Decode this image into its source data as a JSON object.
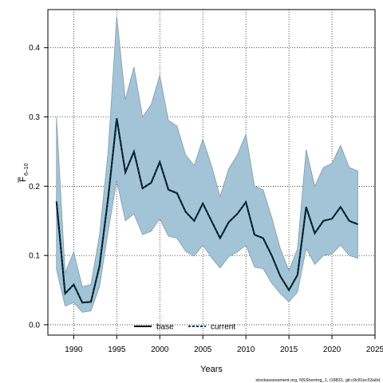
{
  "chart_data": {
    "type": "line",
    "xlabel": "Years",
    "ylabel_main": "F",
    "ylabel_sub": "6–10",
    "credit": "stockassessment.org, NSSherring_1, r18831, git:c9c81ec53a0d",
    "xlim": [
      1987,
      2025
    ],
    "ylim": [
      -0.015,
      0.455
    ],
    "xticks": [
      1990,
      1995,
      2000,
      2005,
      2010,
      2015,
      2020,
      2025
    ],
    "yticks": [
      0.0,
      0.1,
      0.2,
      0.3,
      0.4
    ],
    "ytick_labels": [
      "0.0",
      "0.1",
      "0.2",
      "0.3",
      "0.4"
    ],
    "grid": true,
    "legend_position": "bottom-center",
    "colors": {
      "band": "#a3c4d6",
      "band_edge": "#7f9aab",
      "base": "#000000",
      "current": "#003a4d"
    },
    "x": [
      1988,
      1989,
      1990,
      1991,
      1992,
      1993,
      1994,
      1995,
      1996,
      1997,
      1998,
      1999,
      2000,
      2001,
      2002,
      2003,
      2004,
      2005,
      2006,
      2007,
      2008,
      2009,
      2010,
      2011,
      2012,
      2013,
      2014,
      2015,
      2016,
      2017,
      2018,
      2019,
      2020,
      2021,
      2022,
      2023
    ],
    "band_upper": [
      0.3,
      0.075,
      0.105,
      0.055,
      0.058,
      0.13,
      0.25,
      0.445,
      0.325,
      0.372,
      0.3,
      0.318,
      0.36,
      0.295,
      0.287,
      0.245,
      0.23,
      0.268,
      0.23,
      0.185,
      0.225,
      0.245,
      0.275,
      0.2,
      0.195,
      0.155,
      0.11,
      0.078,
      0.11,
      0.253,
      0.2,
      0.227,
      0.233,
      0.259,
      0.227,
      0.222
    ],
    "band_lower": [
      0.08,
      0.027,
      0.032,
      0.018,
      0.02,
      0.055,
      0.135,
      0.208,
      0.15,
      0.16,
      0.13,
      0.135,
      0.153,
      0.128,
      0.125,
      0.106,
      0.099,
      0.115,
      0.097,
      0.082,
      0.098,
      0.105,
      0.115,
      0.083,
      0.081,
      0.06,
      0.045,
      0.033,
      0.047,
      0.11,
      0.087,
      0.1,
      0.102,
      0.115,
      0.1,
      0.096
    ],
    "series": [
      {
        "name": "base",
        "style": "solid",
        "values": [
          0.178,
          0.045,
          0.058,
          0.032,
          0.033,
          0.085,
          0.183,
          0.298,
          0.22,
          0.25,
          0.197,
          0.205,
          0.235,
          0.195,
          0.19,
          0.163,
          0.15,
          0.175,
          0.15,
          0.125,
          0.148,
          0.16,
          0.177,
          0.13,
          0.125,
          0.1,
          0.07,
          0.05,
          0.072,
          0.17,
          0.132,
          0.15,
          0.153,
          0.17,
          0.15,
          0.145
        ]
      },
      {
        "name": "current",
        "style": "dashed",
        "values": [
          0.178,
          0.045,
          0.058,
          0.032,
          0.033,
          0.085,
          0.183,
          0.298,
          0.22,
          0.25,
          0.197,
          0.205,
          0.235,
          0.195,
          0.19,
          0.163,
          0.15,
          0.175,
          0.15,
          0.125,
          0.148,
          0.16,
          0.177,
          0.13,
          0.125,
          0.1,
          0.07,
          0.05,
          0.072,
          0.17,
          0.132,
          0.15,
          0.153,
          0.17,
          0.15,
          0.145
        ]
      }
    ]
  }
}
